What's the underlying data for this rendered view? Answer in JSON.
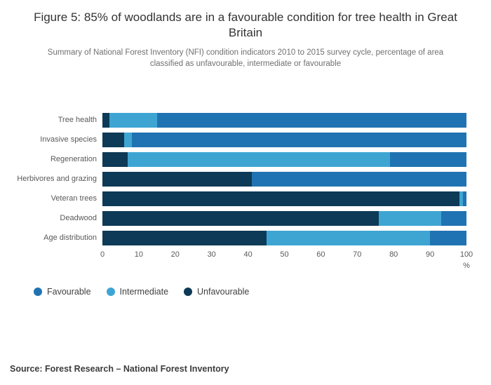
{
  "title": "Figure 5: 85% of woodlands are in a favourable condition for tree health in Great Britain",
  "subtitle": "Summary of National Forest Inventory (NFI) condition indicators 2010 to 2015 survey cycle, percentage of area classified as unfavourable, intermediate or favourable",
  "source": "Source: Forest Research – National Forest Inventory",
  "axis": {
    "ticks": [
      0,
      10,
      20,
      30,
      40,
      50,
      60,
      70,
      80,
      90,
      100
    ],
    "unit_label": "%"
  },
  "legend": [
    {
      "label": "Favourable",
      "color": "#2073b2"
    },
    {
      "label": "Intermediate",
      "color": "#3ea5d3"
    },
    {
      "label": "Unfavourable",
      "color": "#0d3a56"
    }
  ],
  "chart_data": {
    "type": "bar",
    "orientation": "horizontal",
    "stacked": true,
    "title": "Figure 5: 85% of woodlands are in a favourable condition for tree health in Great Britain",
    "xlabel": "%",
    "xlim": [
      0,
      100
    ],
    "grid": false,
    "legend_position": "bottom",
    "categories": [
      "Tree health",
      "Invasive species",
      "Regeneration",
      "Herbivores and grazing",
      "Veteran trees",
      "Deadwood",
      "Age distribution"
    ],
    "series": [
      {
        "name": "Unfavourable",
        "color": "#0d3a56",
        "values": [
          2,
          6,
          7,
          41,
          98,
          76,
          45
        ]
      },
      {
        "name": "Intermediate",
        "color": "#3ea5d3",
        "values": [
          13,
          2,
          72,
          0,
          1,
          17,
          45
        ]
      },
      {
        "name": "Favourable",
        "color": "#2073b2",
        "values": [
          85,
          92,
          21,
          59,
          1,
          7,
          10
        ]
      }
    ]
  }
}
